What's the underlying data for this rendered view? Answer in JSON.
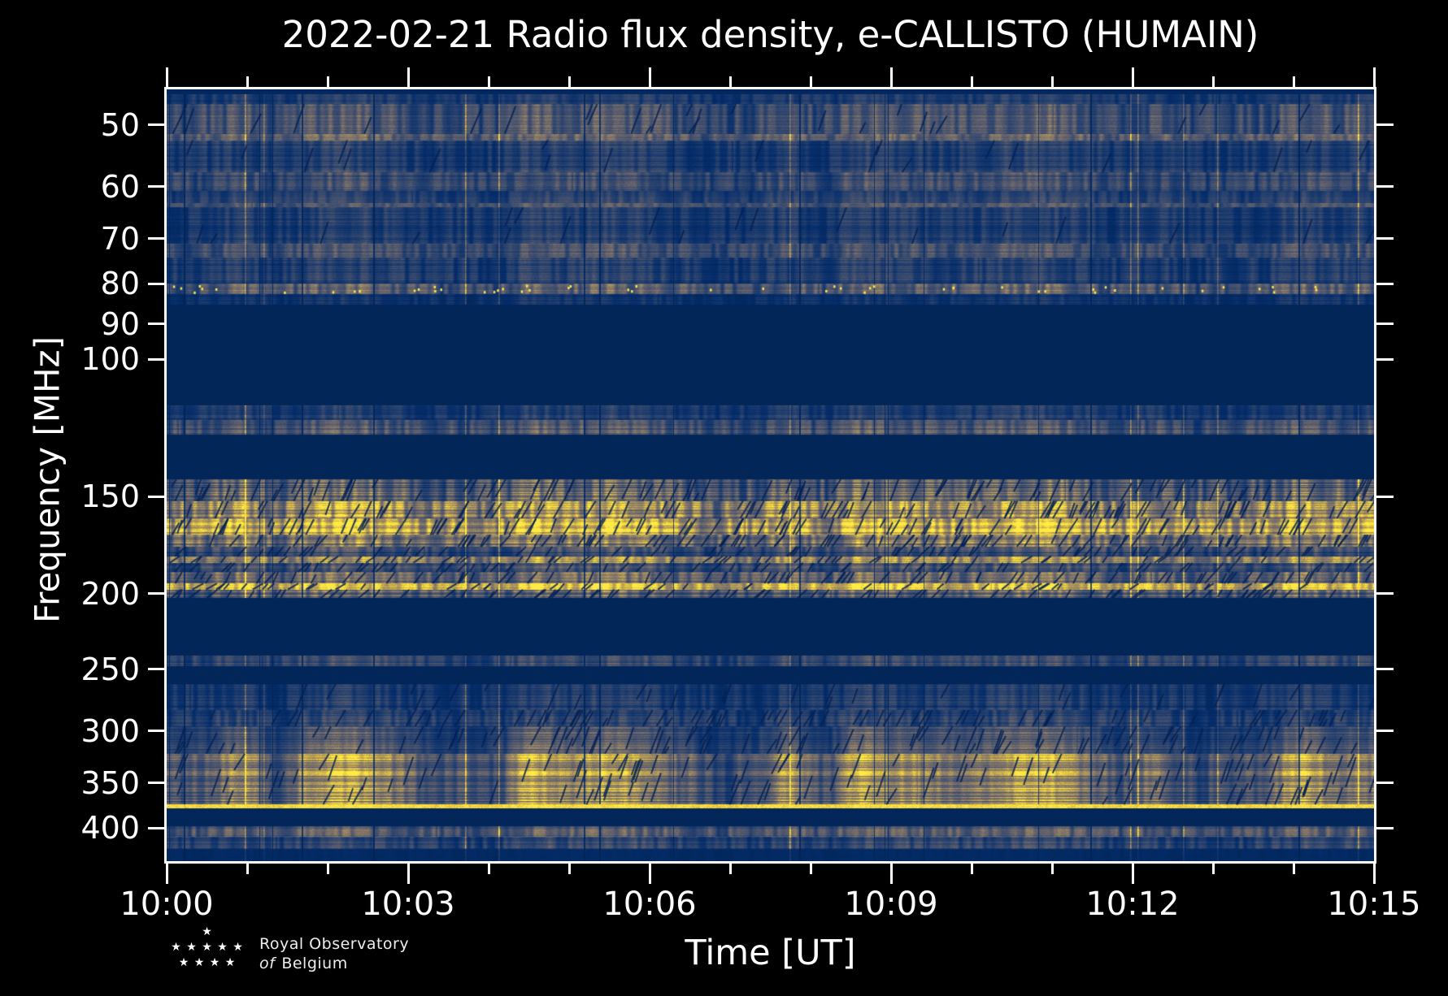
{
  "chart_data": {
    "type": "heatmap",
    "subtype": "radio-spectrogram",
    "title": "2022-02-21 Radio flux density, e-CALLISTO (HUMAIN)",
    "xlabel": "Time [UT]",
    "ylabel": "Frequency [MHz]",
    "colormap": "cividis",
    "background_color": "#00224e",
    "peak_color": "#ffe946",
    "x_axis": {
      "range_minutes": 15,
      "tick_labels": [
        "10:00",
        "10:03",
        "10:06",
        "10:09",
        "10:12",
        "10:15"
      ],
      "major_tick_every_minutes": 3,
      "minor_tick_every_minutes": 1
    },
    "y_axis": {
      "scale": "log",
      "freq_top_mhz": 45,
      "freq_bottom_mhz": 441,
      "tick_values": [
        50,
        60,
        70,
        80,
        90,
        100,
        150,
        200,
        250,
        300,
        350,
        400
      ],
      "tick_labels": [
        "50",
        "60",
        "70",
        "80",
        "90",
        "100",
        "150",
        "200",
        "250",
        "300",
        "350",
        "400"
      ]
    },
    "bands": [
      {
        "f": [
          45.0,
          45.6
        ],
        "i": 0.07,
        "rv": 0.1,
        "cv": 0.2,
        "s": 0,
        "p": 0,
        "patch": 0,
        "d": "top edge dark strip"
      },
      {
        "f": [
          45.6,
          47.0
        ],
        "i": 0.22,
        "rv": 0.25,
        "cv": 0.8,
        "s": 0,
        "p": 0,
        "patch": 0,
        "d": "noisy blue"
      },
      {
        "f": [
          47.0,
          51.3
        ],
        "i": 0.34,
        "rv": 0.2,
        "cv": 0.85,
        "s": 0.3,
        "p": 0,
        "patch": 0,
        "d": "lighter speckled band"
      },
      {
        "f": [
          51.3,
          52.3
        ],
        "i": 0.45,
        "rv": 0.15,
        "cv": 0.7,
        "s": 0,
        "p": 0,
        "patch": 0,
        "d": "tan line at ~51 MHz"
      },
      {
        "f": [
          52.3,
          57.5
        ],
        "i": 0.22,
        "rv": 0.3,
        "cv": 0.8,
        "s": 0.2,
        "p": 0,
        "patch": 0,
        "d": "blue noisy"
      },
      {
        "f": [
          57.5,
          60.8
        ],
        "i": 0.3,
        "rv": 0.25,
        "cv": 0.8,
        "s": 0,
        "p": 0,
        "patch": 0,
        "d": "lighter band ~58-60 MHz"
      },
      {
        "f": [
          60.8,
          63.0
        ],
        "i": 0.24,
        "rv": 0.2,
        "cv": 0.75,
        "s": 0,
        "p": 0,
        "patch": 0,
        "d": "blue"
      },
      {
        "f": [
          63.0,
          63.8
        ],
        "i": 0.38,
        "rv": 0.1,
        "cv": 0.6,
        "s": 0,
        "p": 0,
        "patch": 0,
        "d": "thin tan line"
      },
      {
        "f": [
          63.8,
          71.0
        ],
        "i": 0.2,
        "rv": 0.3,
        "cv": 0.8,
        "s": 0.2,
        "p": 0,
        "patch": 0,
        "d": "blue noisy"
      },
      {
        "f": [
          71.0,
          74.0
        ],
        "i": 0.33,
        "rv": 0.2,
        "cv": 0.75,
        "s": 0,
        "p": 0,
        "patch": 0,
        "d": "tan band ~72 MHz"
      },
      {
        "f": [
          74.0,
          80.0
        ],
        "i": 0.22,
        "rv": 0.3,
        "cv": 0.85,
        "s": 0,
        "p": 0,
        "patch": 0,
        "d": "blue speckle"
      },
      {
        "f": [
          80.0,
          82.5
        ],
        "i": 0.4,
        "rv": 0.25,
        "cv": 0.9,
        "s": 0,
        "p": 1,
        "patch": 0,
        "d": "line with bright pips ~81 MHz"
      },
      {
        "f": [
          82.5,
          85.0
        ],
        "i": 0.15,
        "rv": 0.3,
        "cv": 0.8,
        "s": 0,
        "p": 0,
        "patch": 0,
        "d": "fading speckle"
      },
      {
        "f": [
          85.0,
          114.5
        ],
        "i": 0.045,
        "rv": 0.05,
        "cv": 0.05,
        "s": 0,
        "p": 0,
        "patch": 0,
        "d": "quiet dark band (FM range blanked)"
      },
      {
        "f": [
          114.5,
          119.5
        ],
        "i": 0.2,
        "rv": 0.3,
        "cv": 0.8,
        "s": 0,
        "p": 0,
        "patch": 0,
        "d": "speckled band"
      },
      {
        "f": [
          119.5,
          125.0
        ],
        "i": 0.36,
        "rv": 0.25,
        "cv": 0.8,
        "s": 0,
        "p": 0,
        "patch": 0,
        "d": "tan speckled band ~120 MHz"
      },
      {
        "f": [
          125.0,
          142.5
        ],
        "i": 0.045,
        "rv": 0.05,
        "cv": 0.05,
        "s": 0,
        "p": 0,
        "patch": 0,
        "d": "quiet dark band"
      },
      {
        "f": [
          142.5,
          152.0
        ],
        "i": 0.42,
        "rv": 0.45,
        "cv": 0.9,
        "s": 1,
        "p": 0,
        "patch": 0,
        "d": "striped active band"
      },
      {
        "f": [
          152.0,
          160.0
        ],
        "i": 0.68,
        "rv": 0.3,
        "cv": 0.8,
        "s": 1,
        "p": 0,
        "patch": 0,
        "d": "strong yellow band ~155 MHz"
      },
      {
        "f": [
          160.0,
          168.0
        ],
        "i": 0.8,
        "rv": 0.25,
        "cv": 0.7,
        "s": 1,
        "p": 0,
        "patch": 0,
        "d": "brightest yellow band ~163 MHz"
      },
      {
        "f": [
          168.0,
          174.0
        ],
        "i": 0.52,
        "rv": 0.3,
        "cv": 0.8,
        "s": 1,
        "p": 0,
        "patch": 0,
        "d": "tan band"
      },
      {
        "f": [
          174.0,
          179.0
        ],
        "i": 0.3,
        "rv": 0.3,
        "cv": 0.85,
        "s": 0.6,
        "p": 0,
        "patch": 0,
        "d": "blue gap"
      },
      {
        "f": [
          179.0,
          182.5
        ],
        "i": 0.66,
        "rv": 0.2,
        "cv": 0.7,
        "s": 0.6,
        "p": 0,
        "patch": 0,
        "d": "yellow line ~180 MHz"
      },
      {
        "f": [
          182.5,
          187.5
        ],
        "i": 0.3,
        "rv": 0.3,
        "cv": 0.85,
        "s": 0.6,
        "p": 0,
        "patch": 0,
        "d": "blue gap"
      },
      {
        "f": [
          187.5,
          194.0
        ],
        "i": 0.48,
        "rv": 0.25,
        "cv": 0.8,
        "s": 0.8,
        "p": 0,
        "patch": 0,
        "d": "tan band"
      },
      {
        "f": [
          194.0,
          197.5
        ],
        "i": 0.8,
        "rv": 0.15,
        "cv": 0.6,
        "s": 0.5,
        "p": 0,
        "patch": 0,
        "d": "bright yellow line ~196 MHz"
      },
      {
        "f": [
          197.5,
          202.5
        ],
        "i": 0.42,
        "rv": 0.3,
        "cv": 0.8,
        "s": 0.8,
        "p": 0,
        "patch": 0,
        "d": "tan speckle"
      },
      {
        "f": [
          202.5,
          240.0
        ],
        "i": 0.045,
        "rv": 0.05,
        "cv": 0.05,
        "s": 0,
        "p": 0,
        "patch": 0,
        "d": "quiet dark band"
      },
      {
        "f": [
          240.0,
          248.0
        ],
        "i": 0.27,
        "rv": 0.3,
        "cv": 0.8,
        "s": 0,
        "p": 0,
        "patch": 0,
        "d": "thin textured band ~245 MHz"
      },
      {
        "f": [
          248.0,
          261.0
        ],
        "i": 0.05,
        "rv": 0.08,
        "cv": 0.1,
        "s": 0,
        "p": 0,
        "patch": 0,
        "d": "quiet dark band"
      },
      {
        "f": [
          261.0,
          282.0
        ],
        "i": 0.2,
        "rv": 0.3,
        "cv": 0.85,
        "s": 0.3,
        "p": 0,
        "patch": 0,
        "d": "blue speckle"
      },
      {
        "f": [
          282.0,
          296.0
        ],
        "i": 0.24,
        "rv": 0.3,
        "cv": 0.9,
        "s": 0.8,
        "p": 0,
        "patch": 0,
        "d": "speckle with RFI sweeps"
      },
      {
        "f": [
          296.0,
          321.0
        ],
        "i": 0.33,
        "rv": 0.35,
        "cv": 0.95,
        "s": 1,
        "p": 0,
        "patch": 1,
        "d": "patchy yellow ~300-320 MHz"
      },
      {
        "f": [
          321.0,
          373.0
        ],
        "i": 0.55,
        "rv": 0.4,
        "cv": 0.95,
        "s": 1.2,
        "p": 0,
        "patch": 1,
        "d": "bright striped band 330-370 MHz"
      },
      {
        "f": [
          373.0,
          377.0
        ],
        "i": 0.97,
        "rv": 0.03,
        "cv": 0.1,
        "s": 0,
        "p": 0,
        "patch": 0,
        "d": "solid yellow line ~375 MHz"
      },
      {
        "f": [
          377.0,
          398.0
        ],
        "i": 0.05,
        "rv": 0.05,
        "cv": 0.05,
        "s": 0,
        "p": 0,
        "patch": 0,
        "d": "quiet dark band"
      },
      {
        "f": [
          398.0,
          410.0
        ],
        "i": 0.36,
        "rv": 0.25,
        "cv": 0.8,
        "s": 0,
        "p": 0,
        "patch": 0,
        "d": "tan textured band ~405 MHz"
      },
      {
        "f": [
          410.0,
          425.0
        ],
        "i": 0.24,
        "rv": 0.3,
        "cv": 0.85,
        "s": 0,
        "p": 0,
        "patch": 0,
        "d": "blue textured band"
      },
      {
        "f": [
          425.0,
          441.0
        ],
        "i": 0.09,
        "rv": 0.15,
        "cv": 0.4,
        "s": 0,
        "p": 0,
        "patch": 0,
        "d": "bottom edge dark"
      }
    ],
    "annotations": {
      "diagonal_dark_streaks": "short slanted RFI drop-outs across active bands",
      "vertical_striping": "per-sweep intensity variations over full 15 min"
    }
  },
  "logo": {
    "star_rows": [
      "★",
      "★ ★ ★ ★ ★",
      "★ ★ ★ ★"
    ],
    "line1": "Royal Observatory",
    "line2_italic": "of",
    "line2_rest": "Belgium"
  }
}
